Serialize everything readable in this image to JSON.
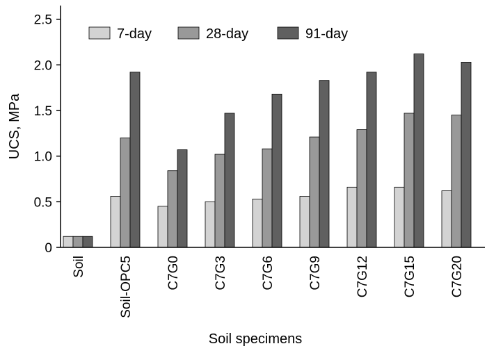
{
  "chart_data": {
    "type": "bar",
    "title": "",
    "xlabel": "Soil specimens",
    "ylabel": "UCS, MPa",
    "ylim": [
      0,
      2.65
    ],
    "yticks": [
      "0",
      "0.5",
      "1.0",
      "1.5",
      "2.0",
      "2.5"
    ],
    "ytick_values": [
      0,
      0.5,
      1.0,
      1.5,
      2.0,
      2.5
    ],
    "grid": false,
    "legend_position": "top",
    "categories": [
      "Soil",
      "Soil-OPC5",
      "C7G0",
      "C7G3",
      "C7G6",
      "C7G9",
      "C7G12",
      "C7G15",
      "C7G20"
    ],
    "series": [
      {
        "name": "7-day",
        "color": "#d3d3d3",
        "values": [
          0.12,
          0.56,
          0.45,
          0.5,
          0.53,
          0.56,
          0.66,
          0.66,
          0.62
        ]
      },
      {
        "name": "28-day",
        "color": "#999999",
        "values": [
          0.12,
          1.2,
          0.84,
          1.02,
          1.08,
          1.21,
          1.29,
          1.47,
          1.45
        ]
      },
      {
        "name": "91-day",
        "color": "#606060",
        "values": [
          0.12,
          1.92,
          1.07,
          1.47,
          1.68,
          1.83,
          1.92,
          2.12,
          2.03
        ]
      }
    ]
  }
}
